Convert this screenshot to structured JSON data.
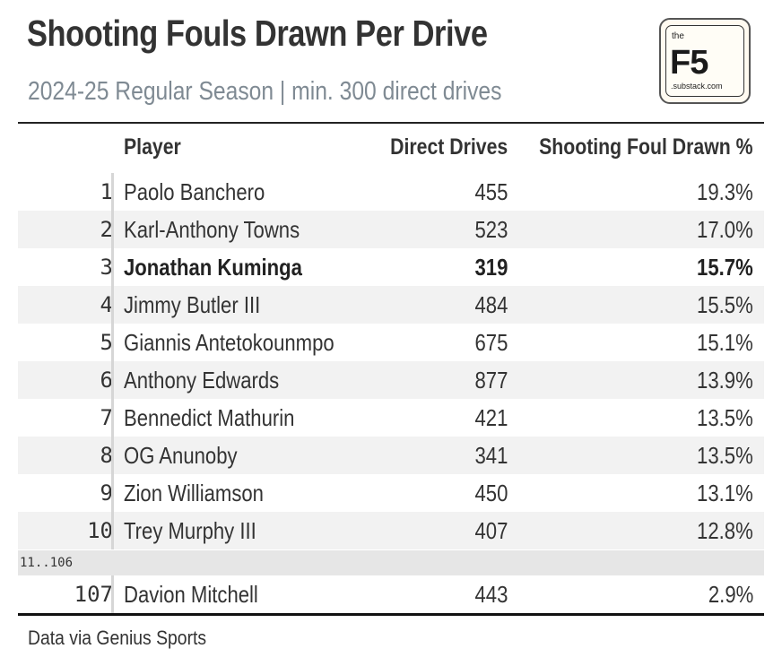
{
  "title": "Shooting Fouls Drawn Per Drive",
  "subtitle": "2024-25 Regular Season | min. 300 direct drives",
  "logo": {
    "top_text": "the",
    "main_text": "F5",
    "sub_text": ".substack.com"
  },
  "columns": {
    "rank": "",
    "player": "Player",
    "drives": "Direct Drives",
    "pct": "Shooting Foul Drawn %"
  },
  "gap_label": "11..106",
  "source": "Data via Genius Sports",
  "chart_data": {
    "type": "table",
    "title": "Shooting Fouls Drawn Per Drive",
    "subtitle": "2024-25 Regular Season | min. 300 direct drives",
    "columns": [
      "Player",
      "Direct Drives",
      "Shooting Foul Drawn %"
    ],
    "highlight_rank": 3,
    "rows": [
      {
        "rank": "1",
        "player": "Paolo Banchero",
        "drives": "455",
        "pct": "19.3%"
      },
      {
        "rank": "2",
        "player": "Karl-Anthony Towns",
        "drives": "523",
        "pct": "17.0%"
      },
      {
        "rank": "3",
        "player": "Jonathan Kuminga",
        "drives": "319",
        "pct": "15.7%"
      },
      {
        "rank": "4",
        "player": "Jimmy Butler III",
        "drives": "484",
        "pct": "15.5%"
      },
      {
        "rank": "5",
        "player": "Giannis Antetokounmpo",
        "drives": "675",
        "pct": "15.1%"
      },
      {
        "rank": "6",
        "player": "Anthony Edwards",
        "drives": "877",
        "pct": "13.9%"
      },
      {
        "rank": "7",
        "player": "Bennedict Mathurin",
        "drives": "421",
        "pct": "13.5%"
      },
      {
        "rank": "8",
        "player": "OG Anunoby",
        "drives": "341",
        "pct": "13.5%"
      },
      {
        "rank": "9",
        "player": "Zion Williamson",
        "drives": "450",
        "pct": "13.1%"
      },
      {
        "rank": "10",
        "player": "Trey Murphy III",
        "drives": "407",
        "pct": "12.8%"
      },
      {
        "rank": "107",
        "player": "Davion Mitchell",
        "drives": "443",
        "pct": "2.9%"
      }
    ]
  },
  "colors": {
    "title": "#333333",
    "subtitle": "#7f8a93",
    "row_shade": "#f2f2f2",
    "gap_row": "#e6e6e6"
  }
}
